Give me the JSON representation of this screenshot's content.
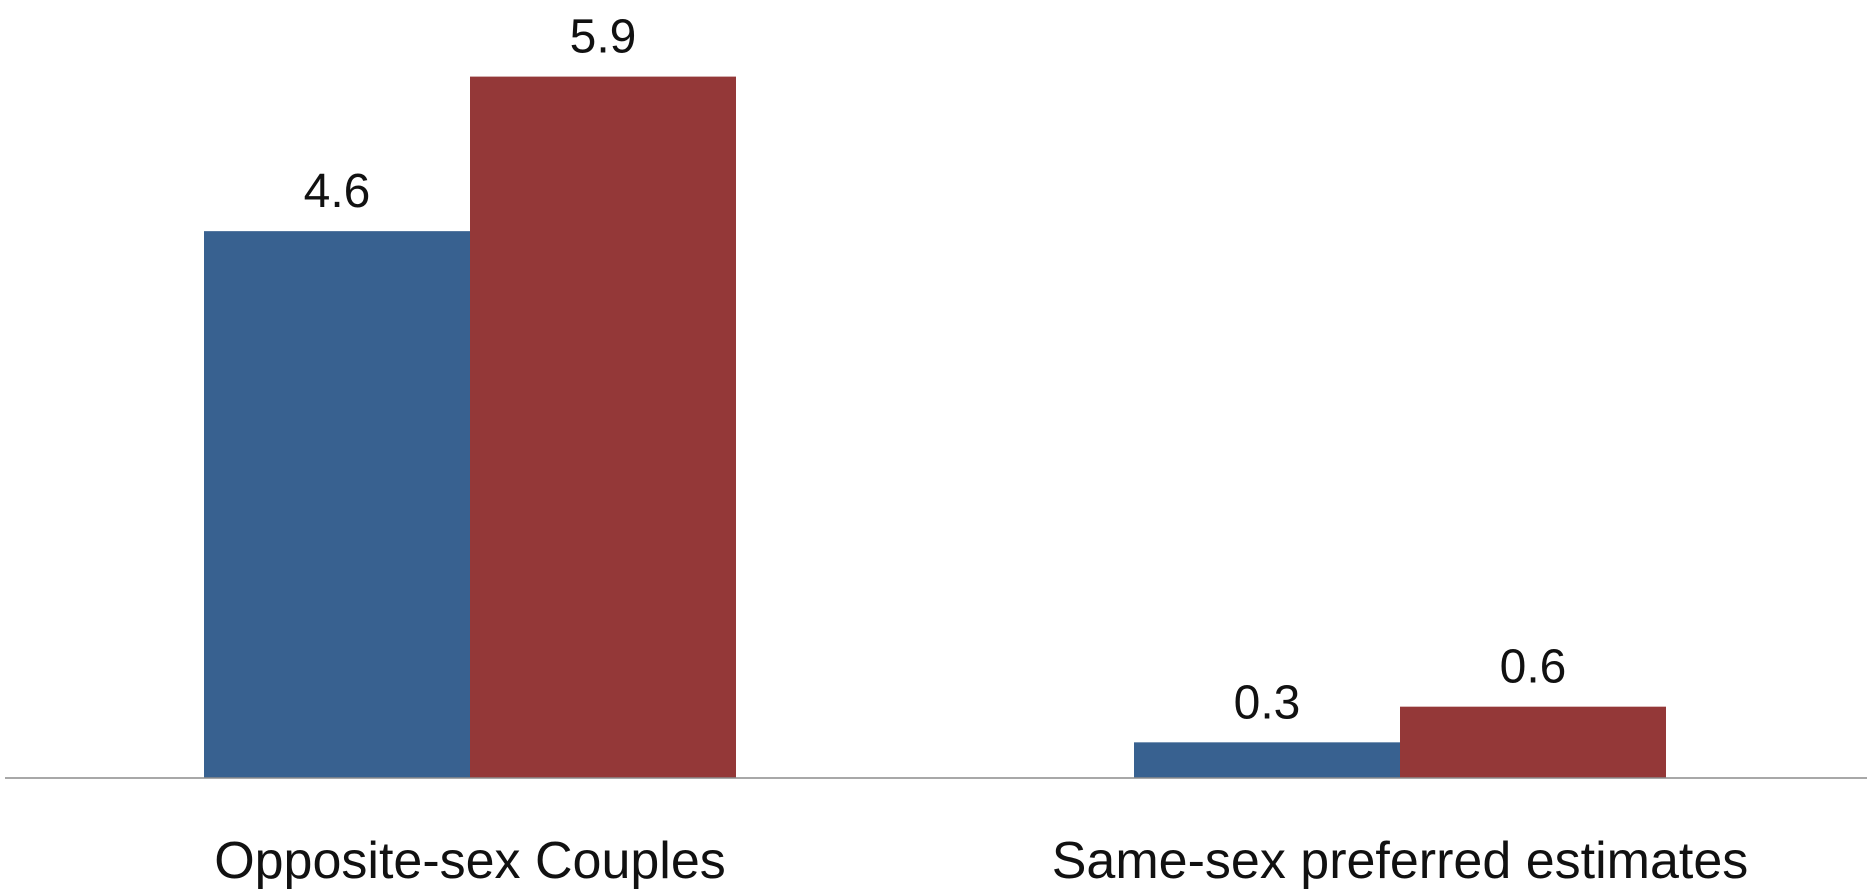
{
  "chart_data": {
    "type": "bar",
    "categories": [
      "Opposite-sex Couples",
      "Same-sex preferred estimates"
    ],
    "series": [
      {
        "values": [
          4.6,
          0.3
        ],
        "color": "#386190"
      },
      {
        "values": [
          5.9,
          0.6
        ],
        "color": "#943838"
      }
    ],
    "data_labels": [
      [
        "4.6",
        "0.3"
      ],
      [
        "5.9",
        "0.6"
      ]
    ],
    "title": "",
    "xlabel": "",
    "ylabel": "",
    "ylim": [
      0,
      6.25
    ],
    "grid": false,
    "legend": "none",
    "axis_color": "#8c8c8c"
  }
}
